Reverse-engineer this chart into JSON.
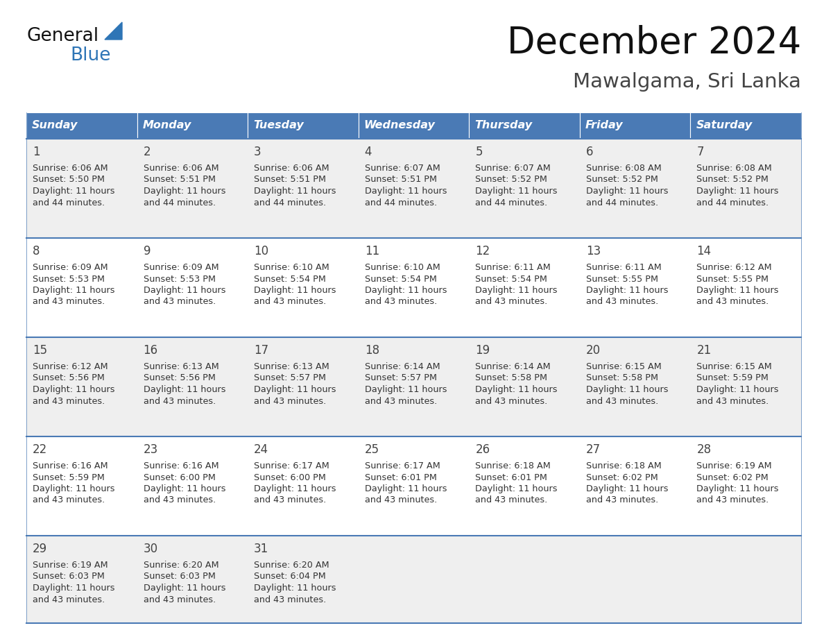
{
  "title": "December 2024",
  "subtitle": "Mawalgama, Sri Lanka",
  "days_of_week": [
    "Sunday",
    "Monday",
    "Tuesday",
    "Wednesday",
    "Thursday",
    "Friday",
    "Saturday"
  ],
  "header_bg": "#4a7ab5",
  "header_text": "#FFFFFF",
  "row_bg_gray": "#EFEFEF",
  "row_bg_white": "#FFFFFF",
  "cell_border_color": "#4a7ab5",
  "day_num_color": "#444444",
  "cell_text_color": "#333333",
  "title_color": "#111111",
  "subtitle_color": "#444444",
  "logo_general_color": "#111111",
  "logo_blue_color": "#2E75B6",
  "weeks": [
    {
      "bg": "gray",
      "days": [
        {
          "date": 1,
          "sunrise": "6:06 AM",
          "sunset": "5:50 PM",
          "daylight_mins": "44"
        },
        {
          "date": 2,
          "sunrise": "6:06 AM",
          "sunset": "5:51 PM",
          "daylight_mins": "44"
        },
        {
          "date": 3,
          "sunrise": "6:06 AM",
          "sunset": "5:51 PM",
          "daylight_mins": "44"
        },
        {
          "date": 4,
          "sunrise": "6:07 AM",
          "sunset": "5:51 PM",
          "daylight_mins": "44"
        },
        {
          "date": 5,
          "sunrise": "6:07 AM",
          "sunset": "5:52 PM",
          "daylight_mins": "44"
        },
        {
          "date": 6,
          "sunrise": "6:08 AM",
          "sunset": "5:52 PM",
          "daylight_mins": "44"
        },
        {
          "date": 7,
          "sunrise": "6:08 AM",
          "sunset": "5:52 PM",
          "daylight_mins": "44"
        }
      ]
    },
    {
      "bg": "white",
      "days": [
        {
          "date": 8,
          "sunrise": "6:09 AM",
          "sunset": "5:53 PM",
          "daylight_mins": "43"
        },
        {
          "date": 9,
          "sunrise": "6:09 AM",
          "sunset": "5:53 PM",
          "daylight_mins": "43"
        },
        {
          "date": 10,
          "sunrise": "6:10 AM",
          "sunset": "5:54 PM",
          "daylight_mins": "43"
        },
        {
          "date": 11,
          "sunrise": "6:10 AM",
          "sunset": "5:54 PM",
          "daylight_mins": "43"
        },
        {
          "date": 12,
          "sunrise": "6:11 AM",
          "sunset": "5:54 PM",
          "daylight_mins": "43"
        },
        {
          "date": 13,
          "sunrise": "6:11 AM",
          "sunset": "5:55 PM",
          "daylight_mins": "43"
        },
        {
          "date": 14,
          "sunrise": "6:12 AM",
          "sunset": "5:55 PM",
          "daylight_mins": "43"
        }
      ]
    },
    {
      "bg": "gray",
      "days": [
        {
          "date": 15,
          "sunrise": "6:12 AM",
          "sunset": "5:56 PM",
          "daylight_mins": "43"
        },
        {
          "date": 16,
          "sunrise": "6:13 AM",
          "sunset": "5:56 PM",
          "daylight_mins": "43"
        },
        {
          "date": 17,
          "sunrise": "6:13 AM",
          "sunset": "5:57 PM",
          "daylight_mins": "43"
        },
        {
          "date": 18,
          "sunrise": "6:14 AM",
          "sunset": "5:57 PM",
          "daylight_mins": "43"
        },
        {
          "date": 19,
          "sunrise": "6:14 AM",
          "sunset": "5:58 PM",
          "daylight_mins": "43"
        },
        {
          "date": 20,
          "sunrise": "6:15 AM",
          "sunset": "5:58 PM",
          "daylight_mins": "43"
        },
        {
          "date": 21,
          "sunrise": "6:15 AM",
          "sunset": "5:59 PM",
          "daylight_mins": "43"
        }
      ]
    },
    {
      "bg": "white",
      "days": [
        {
          "date": 22,
          "sunrise": "6:16 AM",
          "sunset": "5:59 PM",
          "daylight_mins": "43"
        },
        {
          "date": 23,
          "sunrise": "6:16 AM",
          "sunset": "6:00 PM",
          "daylight_mins": "43"
        },
        {
          "date": 24,
          "sunrise": "6:17 AM",
          "sunset": "6:00 PM",
          "daylight_mins": "43"
        },
        {
          "date": 25,
          "sunrise": "6:17 AM",
          "sunset": "6:01 PM",
          "daylight_mins": "43"
        },
        {
          "date": 26,
          "sunrise": "6:18 AM",
          "sunset": "6:01 PM",
          "daylight_mins": "43"
        },
        {
          "date": 27,
          "sunrise": "6:18 AM",
          "sunset": "6:02 PM",
          "daylight_mins": "43"
        },
        {
          "date": 28,
          "sunrise": "6:19 AM",
          "sunset": "6:02 PM",
          "daylight_mins": "43"
        }
      ]
    },
    {
      "bg": "gray",
      "days": [
        {
          "date": 29,
          "sunrise": "6:19 AM",
          "sunset": "6:03 PM",
          "daylight_mins": "43"
        },
        {
          "date": 30,
          "sunrise": "6:20 AM",
          "sunset": "6:03 PM",
          "daylight_mins": "43"
        },
        {
          "date": 31,
          "sunrise": "6:20 AM",
          "sunset": "6:04 PM",
          "daylight_mins": "43"
        },
        null,
        null,
        null,
        null
      ]
    }
  ]
}
